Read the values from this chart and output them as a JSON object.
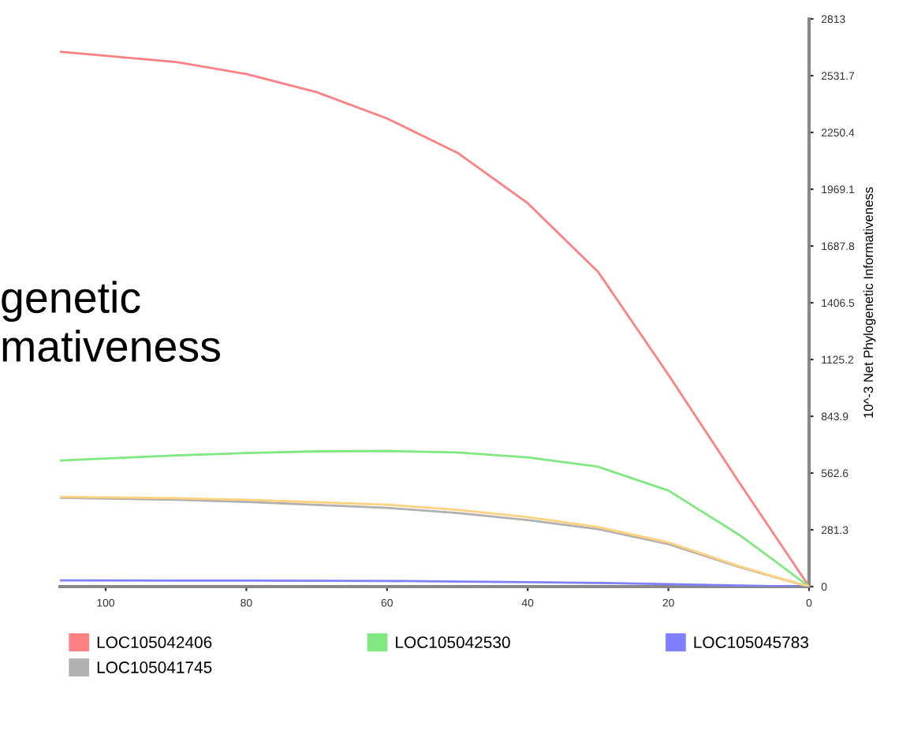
{
  "chart_data": {
    "type": "line",
    "ylabel": "10^-3 Net Phylogenetic Informativeness",
    "annotations": [
      "genetic\nmativeness"
    ],
    "x": [
      106.5,
      90,
      80,
      70,
      60,
      50,
      40,
      30,
      20,
      10,
      5,
      0
    ],
    "series": [
      {
        "name": "LOC105042406",
        "color": "#ff8080",
        "values": [
          2650,
          2600,
          2540,
          2450,
          2320,
          2150,
          1900,
          1560,
          1050,
          520,
          260,
          0
        ]
      },
      {
        "name": "LOC105042530",
        "color": "#80e880",
        "values": [
          625,
          650,
          662,
          670,
          672,
          665,
          640,
          594,
          476,
          258,
          130,
          0
        ]
      },
      {
        "name": "LOC105045783",
        "color": "#8080ff",
        "values": [
          31,
          30,
          30,
          29,
          28,
          25,
          22,
          18,
          12,
          5,
          2,
          0
        ]
      },
      {
        "name": "LOC105041745",
        "color": "#b0b0b0",
        "values": [
          440,
          430,
          420,
          405,
          390,
          365,
          330,
          285,
          210,
          98,
          48,
          0
        ]
      },
      {
        "color": "#ffd27f",
        "values": [
          445,
          438,
          430,
          418,
          406,
          380,
          344,
          295,
          219,
          102,
          50,
          0
        ]
      }
    ],
    "xlim": [
      106.5,
      0
    ],
    "xticks": [
      100,
      80,
      60,
      40,
      20,
      0
    ],
    "ylim": [
      0,
      2813
    ],
    "yticks": [
      0,
      281.3,
      562.6,
      843.9,
      1125.2,
      1406.5,
      1687.8,
      1969.1,
      2250.4,
      2531.7,
      2813
    ],
    "grid": false,
    "legend": "bottom",
    "marker": "none",
    "line_style": "solid"
  }
}
